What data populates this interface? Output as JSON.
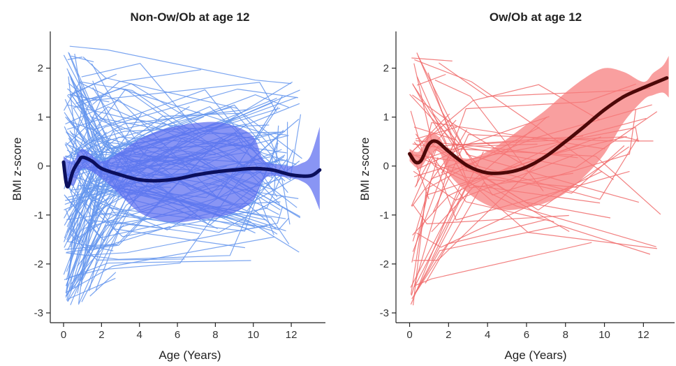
{
  "chart_data": [
    {
      "type": "line",
      "title": "Non-Ow/Ob at age 12",
      "xlabel": "Age (Years)",
      "ylabel": "BMI z-score",
      "xlim": [
        -0.7,
        13.8
      ],
      "ylim": [
        -3.2,
        2.75
      ],
      "x_ticks": [
        "0",
        "2",
        "4",
        "6",
        "8",
        "10",
        "12"
      ],
      "y_ticks": [
        "-3",
        "-2",
        "-1",
        "0",
        "1",
        "2"
      ],
      "grid": false,
      "colors": {
        "individual": "#6495ED",
        "band": "#5b6cf0",
        "mean": "#0b0f5c"
      },
      "mean_curve": {
        "x": [
          0,
          0.2,
          0.5,
          0.8,
          1.0,
          1.5,
          2,
          3,
          4,
          5,
          6,
          7,
          8,
          9,
          10,
          11,
          12,
          13,
          13.5
        ],
        "y": [
          0.08,
          -0.42,
          -0.1,
          0.1,
          0.18,
          0.1,
          -0.05,
          -0.18,
          -0.28,
          -0.3,
          -0.26,
          -0.18,
          -0.12,
          -0.08,
          -0.05,
          -0.08,
          -0.18,
          -0.2,
          -0.08
        ]
      },
      "band": {
        "x": [
          0,
          0.5,
          1,
          2,
          3,
          4,
          5,
          6,
          7,
          8,
          9,
          10,
          10.5,
          11,
          12,
          12.5,
          13,
          13.5
        ],
        "upper": [
          0.2,
          0.1,
          0.35,
          0.1,
          0.3,
          0.55,
          0.72,
          0.82,
          0.88,
          0.9,
          0.82,
          0.6,
          0.15,
          0.05,
          0.0,
          0.05,
          0.2,
          0.8
        ],
        "lower": [
          -0.2,
          -0.4,
          -0.05,
          -0.25,
          -0.6,
          -0.95,
          -1.1,
          -1.15,
          -1.1,
          -1.05,
          -0.95,
          -0.7,
          -0.3,
          -0.2,
          -0.25,
          -0.3,
          -0.45,
          -0.9
        ]
      },
      "trajectories_count": 180,
      "trajectories_seed": 11,
      "trajectory_spread": [
        -2.85,
        2.5
      ]
    },
    {
      "type": "line",
      "title": "Ow/Ob at age 12",
      "xlabel": "Age (Years)",
      "ylabel": "BMI z-score",
      "xlim": [
        -0.7,
        13.6
      ],
      "ylim": [
        -3.2,
        2.75
      ],
      "x_ticks": [
        "0",
        "2",
        "4",
        "6",
        "8",
        "10",
        "12"
      ],
      "y_ticks": [
        "-3",
        "-2",
        "-1",
        "0",
        "1",
        "2"
      ],
      "grid": false,
      "colors": {
        "individual": "#f06a6a",
        "band": "#f77a7a",
        "mean": "#4d0808"
      },
      "mean_curve": {
        "x": [
          0,
          0.3,
          0.6,
          1.0,
          1.4,
          2,
          3,
          4,
          5,
          6,
          7,
          8,
          9,
          10,
          11,
          12,
          13.2
        ],
        "y": [
          0.25,
          0.08,
          0.12,
          0.45,
          0.5,
          0.3,
          0.0,
          -0.14,
          -0.13,
          -0.02,
          0.2,
          0.5,
          0.82,
          1.15,
          1.42,
          1.6,
          1.8
        ]
      },
      "band": {
        "x": [
          0,
          0.5,
          1,
          1.5,
          2,
          3,
          4,
          5,
          6,
          7,
          8,
          9,
          10,
          11,
          12,
          12.5,
          13,
          13.3
        ],
        "upper": [
          0.35,
          0.3,
          0.65,
          0.6,
          0.3,
          0.15,
          0.3,
          0.55,
          0.85,
          1.15,
          1.5,
          1.8,
          2.0,
          1.92,
          1.72,
          1.9,
          2.05,
          2.25
        ],
        "lower": [
          0.1,
          -0.05,
          0.2,
          0.3,
          -0.15,
          -0.55,
          -0.8,
          -0.9,
          -0.85,
          -0.75,
          -0.55,
          -0.2,
          0.25,
          0.9,
          1.35,
          1.45,
          1.5,
          1.4
        ]
      },
      "trajectories_count": 60,
      "trajectories_seed": 29,
      "trajectory_spread": [
        -2.9,
        2.45
      ]
    }
  ]
}
